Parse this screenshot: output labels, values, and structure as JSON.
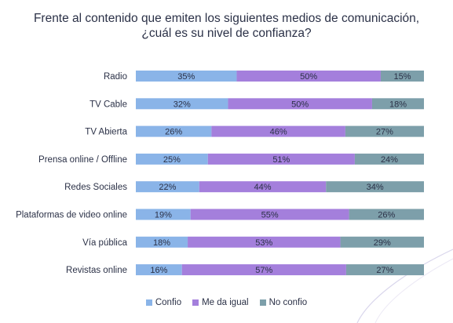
{
  "title_line1": "Frente al contenido que emiten los siguientes medios de comunicación,",
  "title_line2": "¿cuál es su nivel de confianza?",
  "colors": {
    "confio": "#8ab4e8",
    "me_da_igual": "#a47fdc",
    "no_confio": "#7d9faa",
    "text": "#2b3147"
  },
  "chart_data": {
    "type": "bar",
    "orientation": "horizontal",
    "stacked": true,
    "percent_stacked": true,
    "categories": [
      "Radio",
      "TV Cable",
      "TV Abierta",
      "Prensa online / Offline",
      "Redes Sociales",
      "Plataformas de video online",
      "Vía pública",
      "Revistas online"
    ],
    "series": [
      {
        "name": "Confio",
        "values": [
          35,
          32,
          26,
          25,
          22,
          19,
          18,
          16
        ],
        "labels": [
          "35%",
          "32%",
          "26%",
          "25%",
          "22%",
          "19%",
          "18%",
          "16%"
        ]
      },
      {
        "name": "Me da igual",
        "values": [
          50,
          50,
          46,
          51,
          44,
          55,
          53,
          57
        ],
        "labels": [
          "50%",
          "50%",
          "46%",
          "51%",
          "44%",
          "55%",
          "53%",
          "57%"
        ]
      },
      {
        "name": "No confio",
        "values": [
          15,
          18,
          27,
          24,
          34,
          26,
          29,
          27
        ],
        "labels": [
          "15%",
          "18%",
          "27%",
          "24%",
          "34%",
          "26%",
          "29%",
          "27%"
        ]
      }
    ],
    "legend_position": "bottom",
    "grid": false
  }
}
